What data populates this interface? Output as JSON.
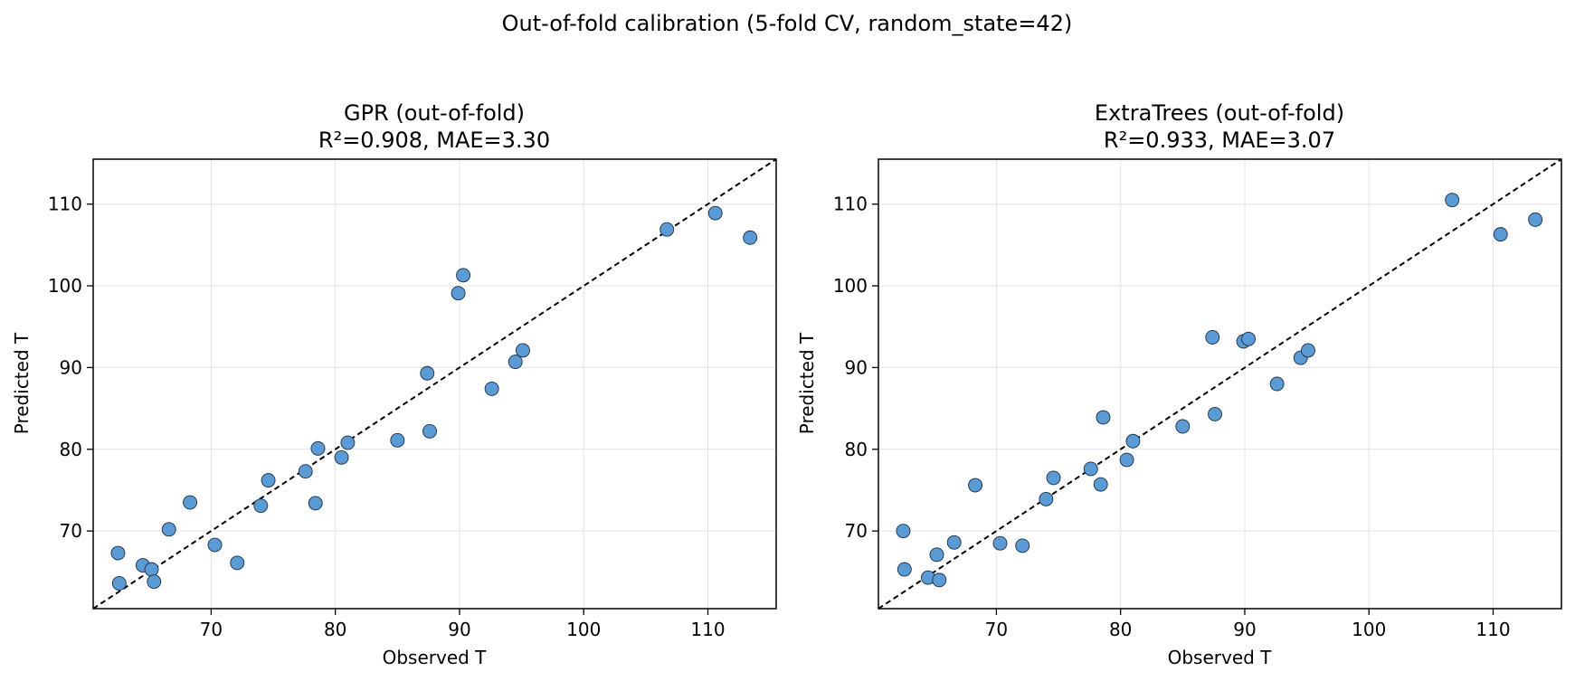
{
  "figure": {
    "suptitle": "Out-of-fold calibration (5-fold CV, random_state=42)"
  },
  "colors": {
    "marker_fill": "#5b9bd5",
    "marker_edge": "#1f2f44",
    "identity_line": "#000000",
    "grid": "#e3e3e3"
  },
  "chart_data": [
    {
      "type": "scatter",
      "title": "GPR (out-of-fold)",
      "subtitle": "R²=0.908, MAE=3.30",
      "xlabel": "Observed T",
      "ylabel": "Predicted T",
      "xlim": [
        60.5,
        115.5
      ],
      "ylim": [
        60.5,
        115.5
      ],
      "xticks": [
        "70",
        "80",
        "90",
        "100",
        "110"
      ],
      "yticks": [
        "70",
        "80",
        "90",
        "100",
        "110"
      ],
      "grid": true,
      "reference_line": "y = x (dashed)",
      "points": [
        {
          "x": 62.5,
          "y": 67.3
        },
        {
          "x": 62.6,
          "y": 63.6
        },
        {
          "x": 64.5,
          "y": 65.8
        },
        {
          "x": 65.2,
          "y": 65.3
        },
        {
          "x": 65.4,
          "y": 63.8
        },
        {
          "x": 66.6,
          "y": 70.2
        },
        {
          "x": 68.3,
          "y": 73.5
        },
        {
          "x": 70.3,
          "y": 68.3
        },
        {
          "x": 72.1,
          "y": 66.1
        },
        {
          "x": 74.0,
          "y": 73.1
        },
        {
          "x": 74.6,
          "y": 76.2
        },
        {
          "x": 77.6,
          "y": 77.3
        },
        {
          "x": 78.4,
          "y": 73.4
        },
        {
          "x": 78.6,
          "y": 80.1
        },
        {
          "x": 80.5,
          "y": 79.0
        },
        {
          "x": 81.0,
          "y": 80.8
        },
        {
          "x": 85.0,
          "y": 81.1
        },
        {
          "x": 87.4,
          "y": 89.3
        },
        {
          "x": 87.6,
          "y": 82.2
        },
        {
          "x": 89.9,
          "y": 99.1
        },
        {
          "x": 90.3,
          "y": 101.3
        },
        {
          "x": 92.6,
          "y": 87.4
        },
        {
          "x": 94.5,
          "y": 90.7
        },
        {
          "x": 95.1,
          "y": 92.1
        },
        {
          "x": 106.7,
          "y": 106.9
        },
        {
          "x": 110.6,
          "y": 108.9
        },
        {
          "x": 113.4,
          "y": 105.9
        }
      ]
    },
    {
      "type": "scatter",
      "title": "ExtraTrees (out-of-fold)",
      "subtitle": "R²=0.933, MAE=3.07",
      "xlabel": "Observed T",
      "ylabel": "Predicted T",
      "xlim": [
        60.5,
        115.5
      ],
      "ylim": [
        60.5,
        115.5
      ],
      "xticks": [
        "70",
        "80",
        "90",
        "100",
        "110"
      ],
      "yticks": [
        "70",
        "80",
        "90",
        "100",
        "110"
      ],
      "grid": true,
      "reference_line": "y = x (dashed)",
      "points": [
        {
          "x": 62.5,
          "y": 70.0
        },
        {
          "x": 62.6,
          "y": 65.3
        },
        {
          "x": 64.5,
          "y": 64.3
        },
        {
          "x": 65.2,
          "y": 67.1
        },
        {
          "x": 65.4,
          "y": 64.0
        },
        {
          "x": 66.6,
          "y": 68.6
        },
        {
          "x": 68.3,
          "y": 75.6
        },
        {
          "x": 70.3,
          "y": 68.5
        },
        {
          "x": 72.1,
          "y": 68.2
        },
        {
          "x": 74.0,
          "y": 73.9
        },
        {
          "x": 74.6,
          "y": 76.5
        },
        {
          "x": 77.6,
          "y": 77.6
        },
        {
          "x": 78.4,
          "y": 75.7
        },
        {
          "x": 78.6,
          "y": 83.9
        },
        {
          "x": 80.5,
          "y": 78.7
        },
        {
          "x": 81.0,
          "y": 81.0
        },
        {
          "x": 85.0,
          "y": 82.8
        },
        {
          "x": 87.4,
          "y": 93.7
        },
        {
          "x": 87.6,
          "y": 84.3
        },
        {
          "x": 89.9,
          "y": 93.2
        },
        {
          "x": 90.3,
          "y": 93.5
        },
        {
          "x": 92.6,
          "y": 88.0
        },
        {
          "x": 94.5,
          "y": 91.2
        },
        {
          "x": 95.1,
          "y": 92.1
        },
        {
          "x": 106.7,
          "y": 110.5
        },
        {
          "x": 110.6,
          "y": 106.3
        },
        {
          "x": 113.4,
          "y": 108.1
        }
      ]
    }
  ]
}
